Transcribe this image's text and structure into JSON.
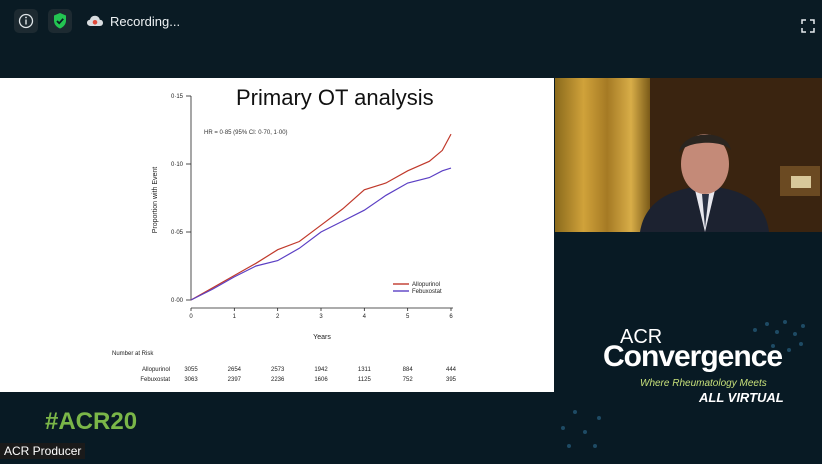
{
  "recording": {
    "label": "Recording..."
  },
  "slide": {
    "title": "Primary OT analysis",
    "annotation": "HR = 0·85 (95% CI: 0·70, 1·00)",
    "risk_table": {
      "header": "Number at Risk",
      "rows": [
        {
          "name": "Allopurinol",
          "values": [
            "3055",
            "2654",
            "2573",
            "1942",
            "1311",
            "884",
            "444"
          ]
        },
        {
          "name": "Febuxostat",
          "values": [
            "3063",
            "2397",
            "2236",
            "1606",
            "1125",
            "752",
            "395"
          ]
        }
      ]
    }
  },
  "branding": {
    "acr": "ACR",
    "convergence": "Convergence",
    "tagline": "Where Rheumatology Meets",
    "virtual": "ALL VIRTUAL",
    "hashtag": "#ACR20"
  },
  "participant": {
    "name": "ACR Producer"
  },
  "colors": {
    "allopurinol": "#c0392b",
    "febuxostat": "#5b3fc4",
    "hashtag": "#7ab648"
  },
  "chart_data": {
    "type": "line",
    "xlabel": "Years",
    "ylabel": "Proportion with Event",
    "xlim": [
      0,
      6
    ],
    "ylim": [
      0,
      0.15
    ],
    "xticks": [
      "0",
      "1",
      "2",
      "3",
      "4",
      "5",
      "6"
    ],
    "yticks": [
      "0·00",
      "0·05",
      "0·10",
      "0·15"
    ],
    "series": [
      {
        "name": "Allopurinol",
        "x": [
          0,
          0.5,
          1,
          1.5,
          2,
          2.5,
          3,
          3.5,
          4,
          4.5,
          5,
          5.5,
          5.8,
          6
        ],
        "values": [
          0,
          0.009,
          0.018,
          0.027,
          0.037,
          0.043,
          0.055,
          0.067,
          0.081,
          0.086,
          0.095,
          0.102,
          0.11,
          0.122
        ]
      },
      {
        "name": "Febuxostat",
        "x": [
          0,
          0.5,
          1,
          1.5,
          2,
          2.5,
          3,
          3.5,
          4,
          4.5,
          5,
          5.5,
          5.8,
          6
        ],
        "values": [
          0,
          0.008,
          0.017,
          0.025,
          0.029,
          0.038,
          0.05,
          0.058,
          0.066,
          0.077,
          0.086,
          0.09,
          0.095,
          0.097
        ]
      }
    ],
    "legend_position": "bottom-right"
  }
}
